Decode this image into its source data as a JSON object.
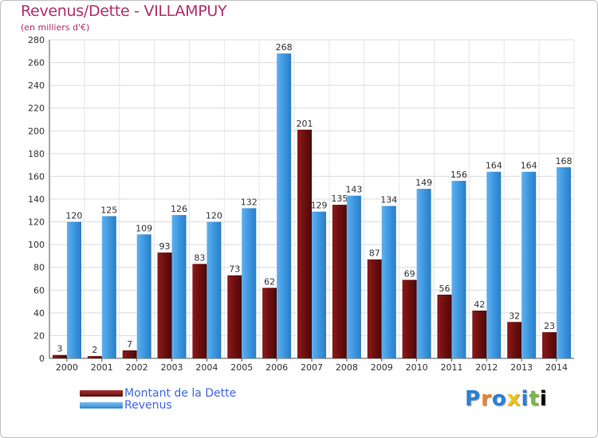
{
  "chart_data": {
    "type": "bar",
    "title": "Revenus/Dette - VILLAMPUY",
    "subtitle": "(en milliers d'€)",
    "categories": [
      "2000",
      "2001",
      "2002",
      "2003",
      "2004",
      "2005",
      "2006",
      "2007",
      "2008",
      "2009",
      "2010",
      "2011",
      "2012",
      "2013",
      "2014"
    ],
    "series": [
      {
        "name": "Montant de la Dette",
        "color": "#6e0f0f",
        "values": [
          3,
          2,
          7,
          93,
          83,
          73,
          62,
          201,
          135,
          87,
          69,
          56,
          42,
          32,
          23
        ]
      },
      {
        "name": "Revenus",
        "color": "#3d97e0",
        "values": [
          120,
          125,
          109,
          126,
          120,
          132,
          268,
          129,
          143,
          134,
          149,
          156,
          164,
          164,
          168
        ]
      }
    ],
    "ylim": [
      0,
      280
    ],
    "yticks": [
      0,
      20,
      40,
      60,
      80,
      100,
      120,
      140,
      160,
      180,
      200,
      220,
      240,
      260,
      280
    ],
    "grid": true,
    "legend_placement": "bottom-left"
  },
  "legend": {
    "debt_label": "Montant de la Dette",
    "revenue_label": "Revenus"
  },
  "brand": {
    "letters": [
      "P",
      "r",
      "o",
      "x",
      "i",
      "t",
      "i"
    ]
  }
}
